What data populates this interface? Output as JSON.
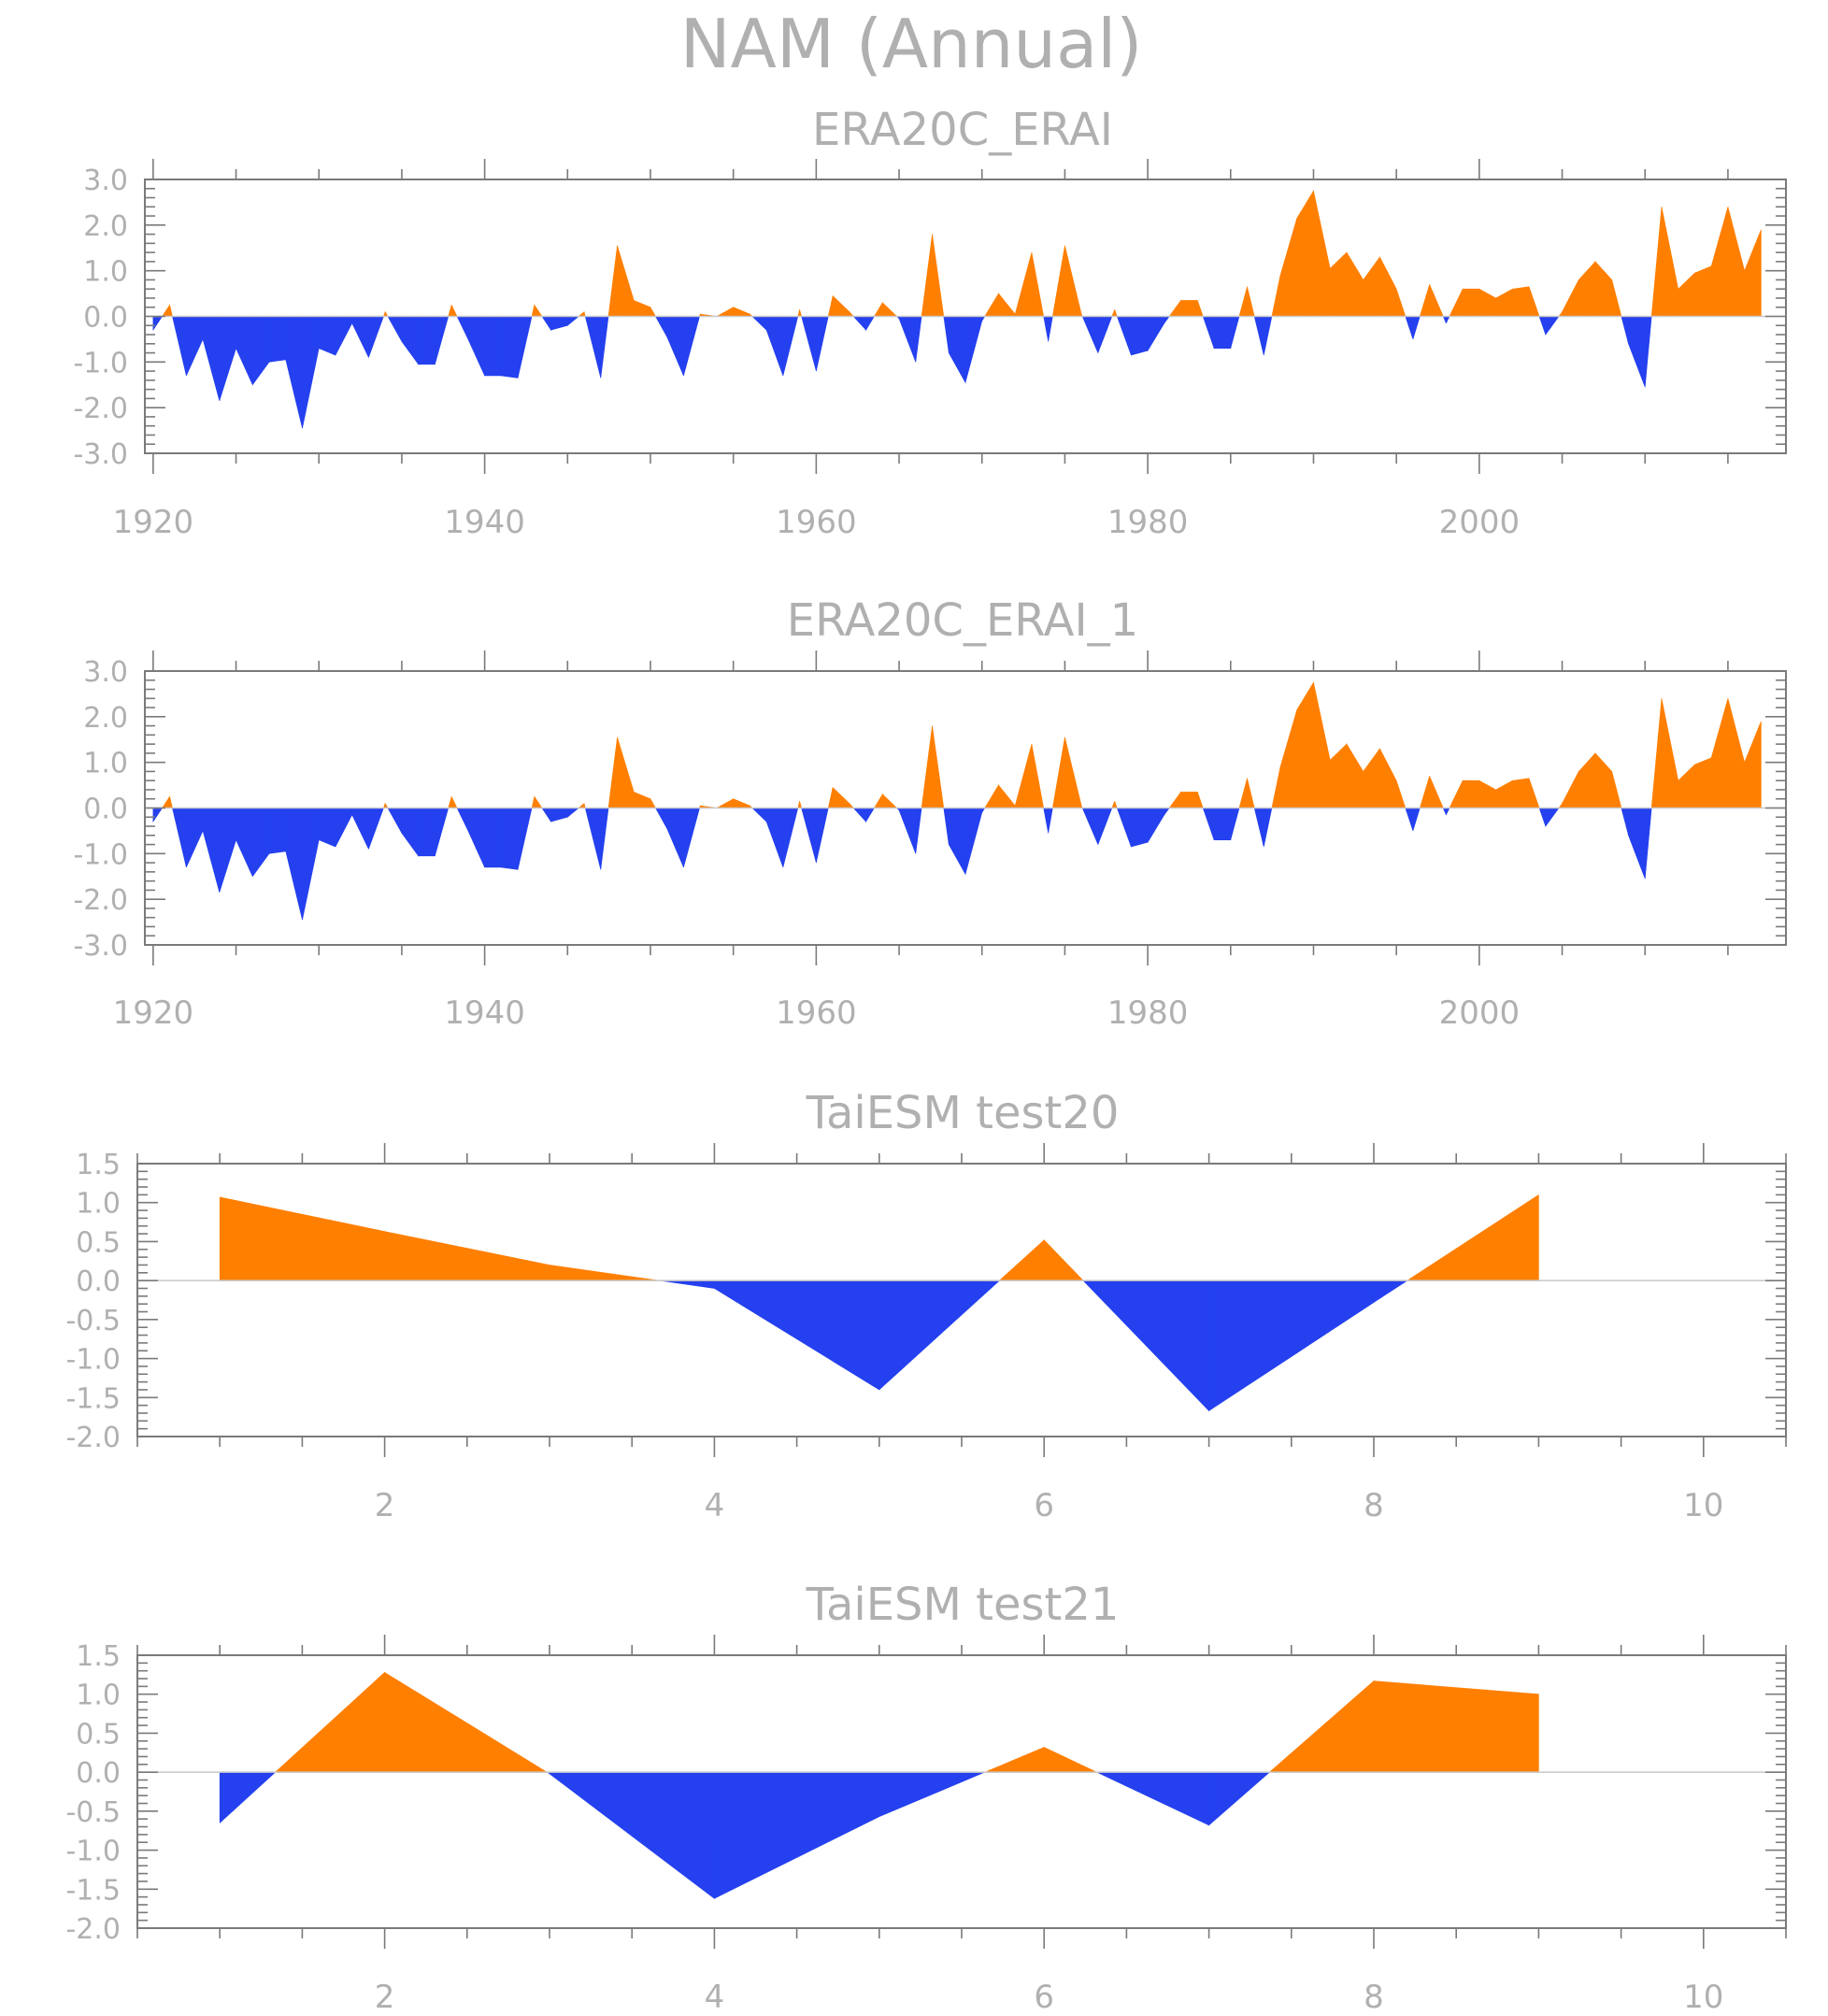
{
  "figure": {
    "title": "NAM (Annual)"
  },
  "colors": {
    "positive": "#ff7f00",
    "negative": "#2440ef",
    "text": "#b0b0b0",
    "axis": "#7a7a7a"
  },
  "chart_data": [
    {
      "type": "area",
      "title": "ERA20C_ERAI",
      "xlabel": "",
      "ylabel": "",
      "xlim": [
        1919.5,
        2018.5
      ],
      "ylim": [
        -3.0,
        3.0
      ],
      "xticks": [
        1920,
        1940,
        1960,
        1980,
        2000
      ],
      "yticks": [
        "3.0",
        "2.0",
        "1.0",
        "0.0",
        "-1.0",
        "-2.0",
        "-3.0"
      ],
      "x_start": 1920,
      "values": [
        -0.3,
        0.25,
        -1.3,
        -0.5,
        -1.85,
        -0.7,
        -1.5,
        -1.0,
        -0.95,
        -2.45,
        -0.7,
        -0.85,
        -0.15,
        -0.9,
        0.1,
        -0.55,
        -1.05,
        -1.05,
        0.25,
        -0.5,
        -1.3,
        -1.3,
        -1.35,
        0.25,
        -0.3,
        -0.2,
        0.1,
        -1.35,
        1.55,
        0.35,
        0.2,
        -0.45,
        -1.3,
        0.05,
        0.0,
        0.2,
        0.05,
        -0.3,
        -1.3,
        0.15,
        -1.2,
        0.45,
        0.1,
        -0.3,
        0.3,
        -0.05,
        -1.0,
        1.8,
        -0.8,
        -1.45,
        -0.1,
        0.5,
        0.05,
        1.4,
        -0.55,
        1.55,
        0.05,
        -0.8,
        0.15,
        -0.85,
        -0.75,
        -0.15,
        0.35,
        0.35,
        -0.7,
        -0.7,
        0.65,
        -0.85,
        0.9,
        2.15,
        2.75,
        1.05,
        1.4,
        0.8,
        1.3,
        0.6,
        -0.5,
        0.7,
        -0.15,
        0.6,
        0.6,
        0.4,
        0.6,
        0.65,
        -0.4,
        0.1,
        0.8,
        1.2,
        0.8,
        -0.6,
        -1.55,
        2.4,
        0.6,
        0.95,
        1.1,
        2.4,
        1.0,
        1.9
      ]
    },
    {
      "type": "area",
      "title": "ERA20C_ERAI_1",
      "xlabel": "",
      "ylabel": "",
      "xlim": [
        1919.5,
        2018.5
      ],
      "ylim": [
        -3.0,
        3.0
      ],
      "xticks": [
        1920,
        1940,
        1960,
        1980,
        2000
      ],
      "yticks": [
        "3.0",
        "2.0",
        "1.0",
        "0.0",
        "-1.0",
        "-2.0",
        "-3.0"
      ],
      "x_start": 1920,
      "values": [
        -0.3,
        0.25,
        -1.3,
        -0.5,
        -1.85,
        -0.7,
        -1.5,
        -1.0,
        -0.95,
        -2.45,
        -0.7,
        -0.85,
        -0.15,
        -0.9,
        0.1,
        -0.55,
        -1.05,
        -1.05,
        0.25,
        -0.5,
        -1.3,
        -1.3,
        -1.35,
        0.25,
        -0.3,
        -0.2,
        0.1,
        -1.35,
        1.55,
        0.35,
        0.2,
        -0.45,
        -1.3,
        0.05,
        0.0,
        0.2,
        0.05,
        -0.3,
        -1.3,
        0.15,
        -1.2,
        0.45,
        0.1,
        -0.3,
        0.3,
        -0.05,
        -1.0,
        1.8,
        -0.8,
        -1.45,
        -0.1,
        0.5,
        0.05,
        1.4,
        -0.55,
        1.55,
        0.05,
        -0.8,
        0.15,
        -0.85,
        -0.75,
        -0.15,
        0.35,
        0.35,
        -0.7,
        -0.7,
        0.65,
        -0.85,
        0.9,
        2.15,
        2.75,
        1.05,
        1.4,
        0.8,
        1.3,
        0.6,
        -0.5,
        0.7,
        -0.15,
        0.6,
        0.6,
        0.4,
        0.6,
        0.65,
        -0.4,
        0.1,
        0.8,
        1.2,
        0.8,
        -0.6,
        -1.55,
        2.4,
        0.6,
        0.95,
        1.1,
        2.4,
        1.0,
        1.9
      ]
    },
    {
      "type": "area",
      "title": "TaiESM test20",
      "xlabel": "",
      "ylabel": "",
      "xlim": [
        0.5,
        10.5
      ],
      "ylim": [
        -2.0,
        1.5
      ],
      "xticks": [
        2,
        4,
        6,
        8,
        10
      ],
      "yticks": [
        "1.5",
        "1.0",
        "0.5",
        "0.0",
        "-0.5",
        "-1.0",
        "-1.5",
        "-2.0"
      ],
      "x_start": 1,
      "values": [
        1.07,
        0.63,
        0.2,
        -0.1,
        -1.4,
        0.52,
        -1.67,
        -0.28,
        1.1
      ]
    },
    {
      "type": "area",
      "title": "TaiESM test21",
      "xlabel": "",
      "ylabel": "",
      "xlim": [
        0.5,
        10.5
      ],
      "ylim": [
        -2.0,
        1.5
      ],
      "xticks": [
        2,
        4,
        6,
        8,
        10
      ],
      "yticks": [
        "1.5",
        "1.0",
        "0.5",
        "0.0",
        "-0.5",
        "-1.0",
        "-1.5",
        "-2.0"
      ],
      "x_start": 1,
      "values": [
        -0.65,
        1.28,
        -0.02,
        -1.62,
        -0.57,
        0.32,
        -0.68,
        1.17,
        1.0
      ]
    }
  ]
}
